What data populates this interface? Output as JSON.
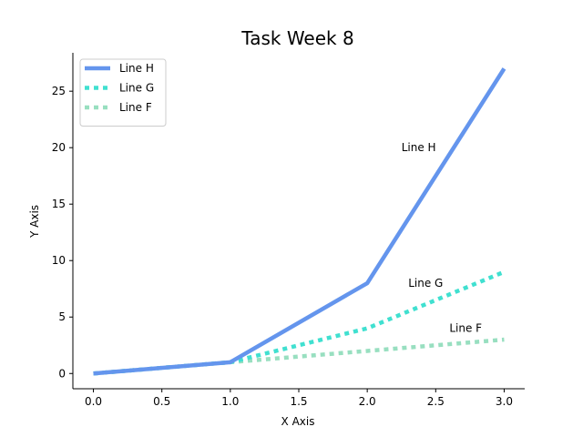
{
  "chart_data": {
    "type": "line",
    "title": "Task Week 8",
    "xlabel": "X Axis",
    "ylabel": "Y Axis",
    "xlim": [
      -0.15,
      3.15
    ],
    "ylim": [
      -1.35,
      28.4
    ],
    "xticks": [
      0.0,
      0.5,
      1.0,
      1.5,
      2.0,
      2.5,
      3.0
    ],
    "xtick_labels": [
      "0.0",
      "0.5",
      "1.0",
      "1.5",
      "2.0",
      "2.5",
      "3.0"
    ],
    "yticks": [
      0,
      5,
      10,
      15,
      20,
      25
    ],
    "ytick_labels": [
      "0",
      "5",
      "10",
      "15",
      "20",
      "25"
    ],
    "grid": false,
    "legend_position": "top-left",
    "x": [
      0,
      1,
      2,
      3
    ],
    "series": [
      {
        "name": "Line H",
        "values": [
          0,
          1,
          8,
          27
        ],
        "color": "#6495ED",
        "style": "solid"
      },
      {
        "name": "Line G",
        "values": [
          0,
          1,
          4,
          9
        ],
        "color": "#40E0D0",
        "style": "dotted"
      },
      {
        "name": "Line F",
        "values": [
          0,
          1,
          2,
          3
        ],
        "color": "#98DFC0",
        "style": "dotted"
      }
    ],
    "annotations": [
      {
        "text": "Line H",
        "x": 2.25,
        "y": 20
      },
      {
        "text": "Line G",
        "x": 2.3,
        "y": 8
      },
      {
        "text": "Line F",
        "x": 2.6,
        "y": 4
      }
    ]
  }
}
